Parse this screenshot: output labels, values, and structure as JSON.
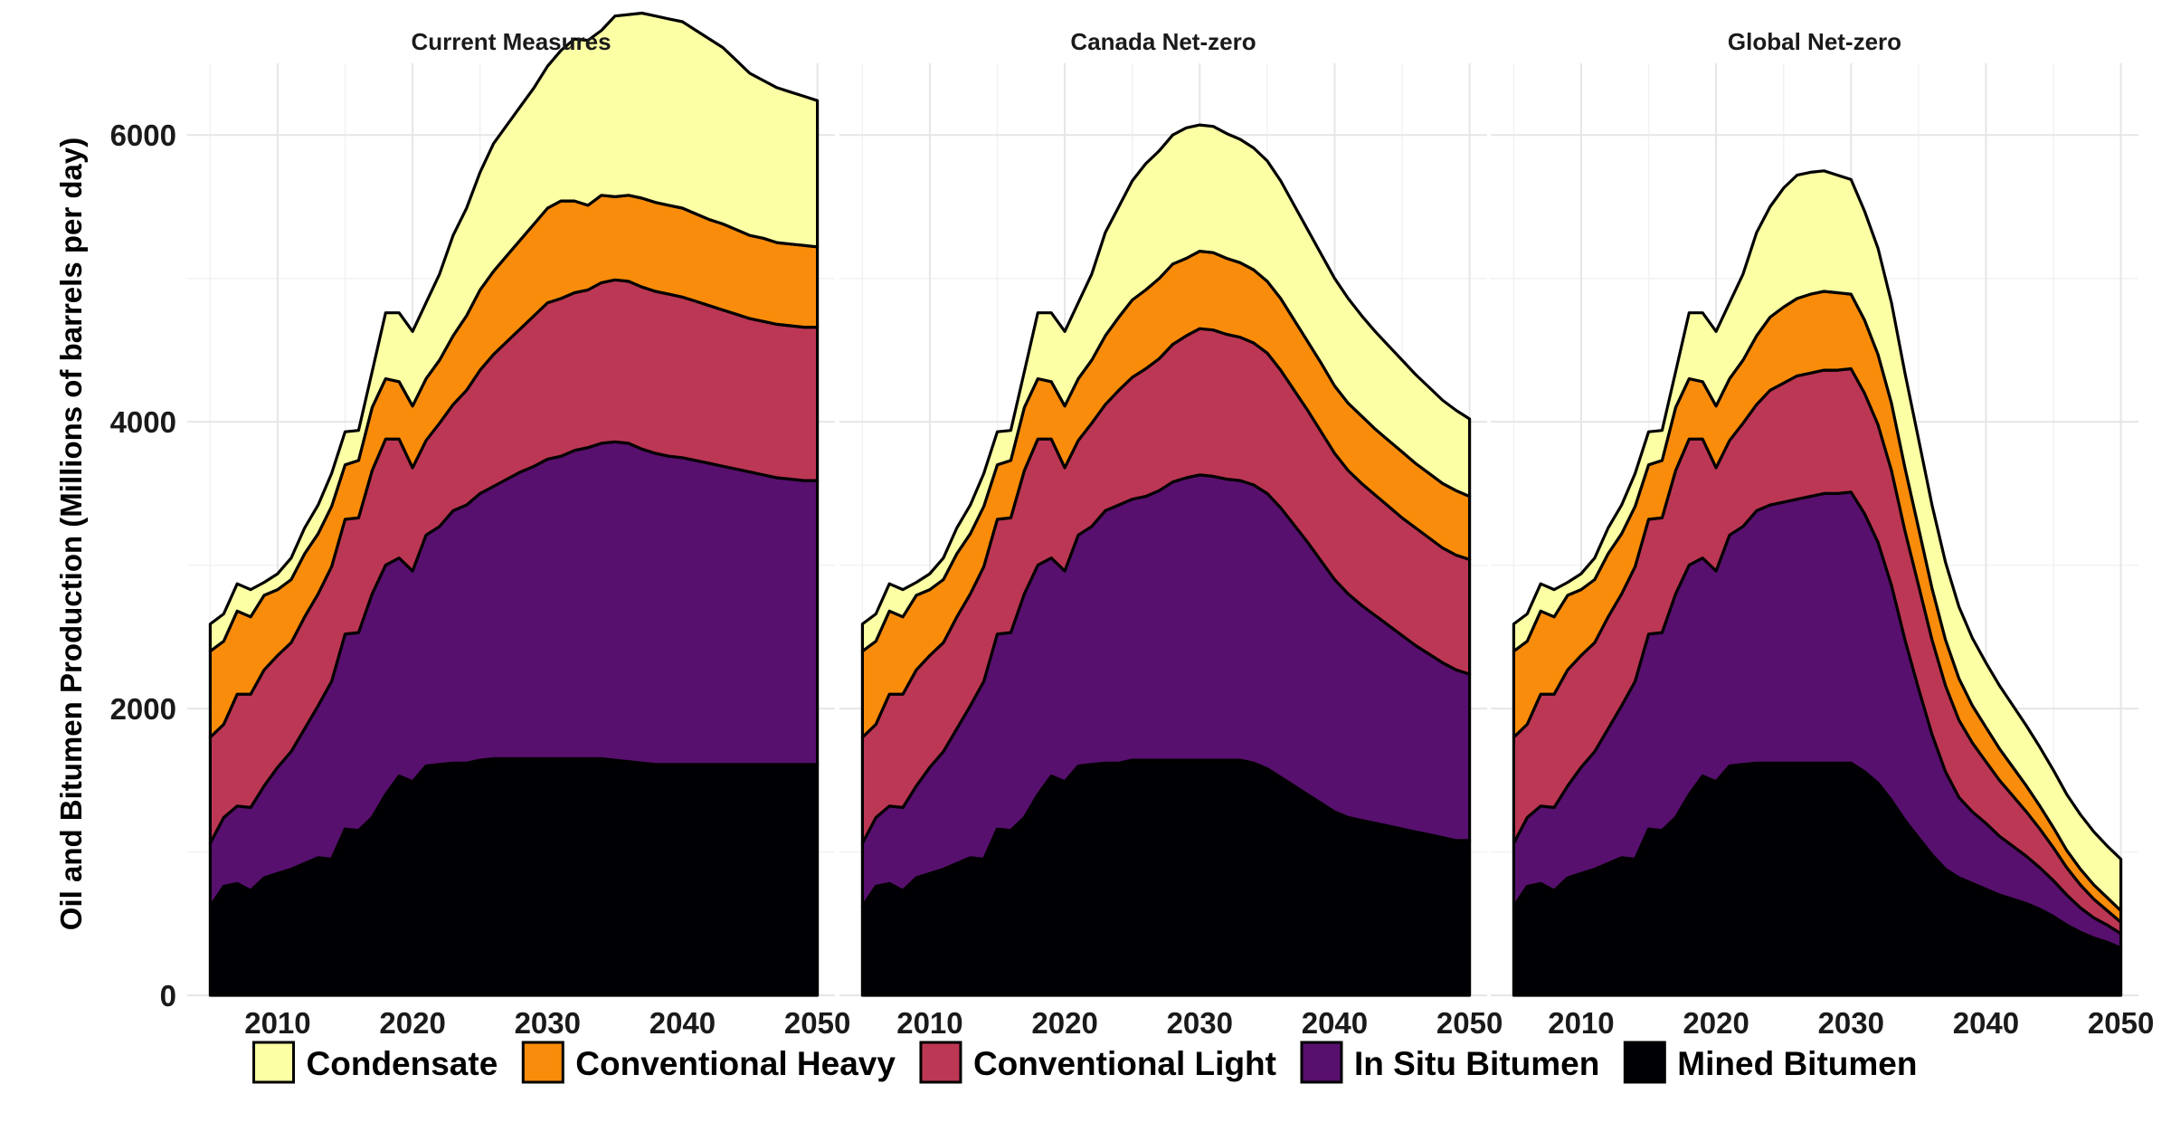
{
  "chart_data": {
    "type": "area",
    "stacked": true,
    "ylabel": "Oil and Bitumen Production (Millions of barrels per day)",
    "xlabel": "",
    "xlim": [
      2005,
      2050
    ],
    "ylim": [
      0,
      6500
    ],
    "x_ticks": [
      2010,
      2020,
      2030,
      2040,
      2050
    ],
    "y_ticks": [
      0,
      2000,
      4000,
      6000
    ],
    "grid": true,
    "legend_position": "bottom",
    "years": [
      2005,
      2006,
      2007,
      2008,
      2009,
      2010,
      2011,
      2012,
      2013,
      2014,
      2015,
      2016,
      2017,
      2018,
      2019,
      2020,
      2021,
      2022,
      2023,
      2024,
      2025,
      2026,
      2027,
      2028,
      2029,
      2030,
      2031,
      2032,
      2033,
      2034,
      2035,
      2036,
      2037,
      2038,
      2039,
      2040,
      2041,
      2042,
      2043,
      2044,
      2045,
      2046,
      2047,
      2048,
      2049,
      2050
    ],
    "series_order": [
      "Condensate",
      "Conventional Heavy",
      "Conventional Light",
      "In Situ Bitumen",
      "Mined Bitumen"
    ],
    "colors": {
      "Condensate": "#FCFFA4",
      "Conventional Heavy": "#F98C0A",
      "Conventional Light": "#BC3754",
      "In Situ Bitumen": "#57106E",
      "Mined Bitumen": "#000004"
    },
    "legend": [
      {
        "label": "Condensate",
        "color": "#FCFFA4"
      },
      {
        "label": "Conventional Heavy",
        "color": "#F98C0A"
      },
      {
        "label": "Conventional Light",
        "color": "#BC3754"
      },
      {
        "label": "In Situ Bitumen",
        "color": "#57106E"
      },
      {
        "label": "Mined Bitumen",
        "color": "#000004"
      }
    ],
    "panels": [
      {
        "title": "Current Measures",
        "series": [
          {
            "name": "Mined Bitumen",
            "values": [
              620,
              760,
              780,
              730,
              820,
              850,
              880,
              920,
              960,
              950,
              1160,
              1150,
              1240,
              1400,
              1530,
              1490,
              1600,
              1610,
              1620,
              1620,
              1640,
              1650,
              1650,
              1650,
              1650,
              1650,
              1650,
              1650,
              1650,
              1650,
              1640,
              1630,
              1620,
              1610,
              1610,
              1610,
              1610,
              1610,
              1610,
              1610,
              1610,
              1610,
              1610,
              1610,
              1610,
              1610
            ]
          },
          {
            "name": "In Situ Bitumen",
            "values": [
              440,
              480,
              540,
              580,
              640,
              740,
              820,
              940,
              1060,
              1240,
              1360,
              1380,
              1560,
              1600,
              1520,
              1470,
              1610,
              1660,
              1760,
              1800,
              1860,
              1900,
              1950,
              2000,
              2040,
              2090,
              2110,
              2150,
              2170,
              2200,
              2220,
              2220,
              2190,
              2170,
              2150,
              2140,
              2120,
              2100,
              2080,
              2060,
              2040,
              2020,
              2000,
              1990,
              1980,
              1980
            ]
          },
          {
            "name": "Conventional Light",
            "values": [
              740,
              650,
              780,
              790,
              810,
              780,
              760,
              780,
              780,
              800,
              800,
              800,
              860,
              880,
              830,
              720,
              660,
              720,
              740,
              800,
              860,
              920,
              960,
              1000,
              1050,
              1090,
              1100,
              1100,
              1100,
              1120,
              1130,
              1130,
              1130,
              1130,
              1130,
              1120,
              1110,
              1100,
              1090,
              1080,
              1070,
              1070,
              1070,
              1070,
              1070,
              1070
            ]
          },
          {
            "name": "Conventional Heavy",
            "values": [
              600,
              580,
              580,
              540,
              520,
              460,
              440,
              440,
              420,
              420,
              380,
              400,
              440,
              420,
              400,
              430,
              430,
              440,
              480,
              520,
              560,
              580,
              600,
              620,
              640,
              660,
              680,
              640,
              590,
              610,
              580,
              600,
              620,
              620,
              620,
              620,
              610,
              600,
              600,
              590,
              580,
              580,
              570,
              570,
              570,
              560
            ]
          },
          {
            "name": "Condensate",
            "values": [
              190,
              190,
              190,
              190,
              90,
              110,
              150,
              180,
              200,
              230,
              230,
              210,
              250,
              460,
              480,
              520,
              530,
              600,
              700,
              750,
              820,
              890,
              910,
              930,
              950,
              990,
              1050,
              1130,
              1150,
              1150,
              1260,
              1260,
              1290,
              1300,
              1300,
              1300,
              1280,
              1260,
              1230,
              1180,
              1130,
              1100,
              1080,
              1060,
              1040,
              1020
            ]
          }
        ]
      },
      {
        "title": "Canada Net-zero",
        "series": [
          {
            "name": "Mined Bitumen",
            "values": [
              620,
              760,
              780,
              730,
              820,
              850,
              880,
              920,
              960,
              950,
              1160,
              1150,
              1240,
              1400,
              1530,
              1490,
              1600,
              1610,
              1620,
              1620,
              1640,
              1640,
              1640,
              1640,
              1640,
              1640,
              1640,
              1640,
              1640,
              1620,
              1580,
              1520,
              1460,
              1400,
              1340,
              1280,
              1240,
              1220,
              1200,
              1180,
              1160,
              1140,
              1120,
              1100,
              1080,
              1080
            ]
          },
          {
            "name": "In Situ Bitumen",
            "values": [
              440,
              480,
              540,
              580,
              640,
              740,
              820,
              940,
              1060,
              1240,
              1360,
              1380,
              1560,
              1600,
              1520,
              1470,
              1610,
              1660,
              1760,
              1800,
              1820,
              1840,
              1880,
              1940,
              1970,
              1990,
              1980,
              1960,
              1950,
              1940,
              1920,
              1880,
              1820,
              1760,
              1690,
              1620,
              1560,
              1500,
              1450,
              1400,
              1350,
              1300,
              1260,
              1220,
              1190,
              1160
            ]
          },
          {
            "name": "Conventional Light",
            "values": [
              740,
              650,
              780,
              790,
              810,
              780,
              760,
              780,
              780,
              800,
              800,
              800,
              860,
              880,
              830,
              720,
              660,
              720,
              740,
              800,
              850,
              890,
              920,
              960,
              990,
              1020,
              1020,
              1010,
              1000,
              990,
              980,
              960,
              940,
              920,
              900,
              880,
              860,
              850,
              840,
              830,
              820,
              820,
              810,
              800,
              800,
              800
            ]
          },
          {
            "name": "Conventional Heavy",
            "values": [
              600,
              580,
              580,
              540,
              520,
              460,
              440,
              440,
              420,
              420,
              380,
              400,
              440,
              420,
              400,
              430,
              430,
              440,
              480,
              510,
              540,
              550,
              560,
              560,
              540,
              540,
              540,
              530,
              520,
              510,
              500,
              500,
              490,
              480,
              480,
              470,
              470,
              470,
              460,
              460,
              460,
              450,
              450,
              450,
              450,
              440
            ]
          },
          {
            "name": "Condensate",
            "values": [
              190,
              190,
              190,
              190,
              90,
              110,
              150,
              180,
              200,
              230,
              230,
              210,
              250,
              460,
              480,
              520,
              530,
              600,
              720,
              770,
              830,
              880,
              890,
              900,
              910,
              880,
              880,
              870,
              860,
              850,
              840,
              820,
              800,
              780,
              760,
              750,
              730,
              700,
              680,
              660,
              640,
              620,
              600,
              580,
              560,
              540
            ]
          }
        ]
      },
      {
        "title": "Global Net-zero",
        "series": [
          {
            "name": "Mined Bitumen",
            "values": [
              620,
              760,
              780,
              730,
              820,
              850,
              880,
              920,
              960,
              950,
              1160,
              1150,
              1240,
              1400,
              1530,
              1490,
              1600,
              1610,
              1620,
              1620,
              1620,
              1620,
              1620,
              1620,
              1620,
              1620,
              1560,
              1480,
              1360,
              1220,
              1100,
              980,
              880,
              820,
              780,
              740,
              700,
              670,
              640,
              600,
              550,
              490,
              440,
              400,
              370,
              330
            ]
          },
          {
            "name": "In Situ Bitumen",
            "values": [
              440,
              480,
              540,
              580,
              640,
              740,
              820,
              940,
              1060,
              1240,
              1360,
              1380,
              1560,
              1600,
              1520,
              1470,
              1610,
              1660,
              1760,
              1800,
              1820,
              1840,
              1860,
              1880,
              1880,
              1890,
              1800,
              1680,
              1500,
              1260,
              1040,
              840,
              680,
              560,
              500,
              460,
              410,
              370,
              330,
              290,
              250,
              210,
              170,
              140,
              120,
              100
            ]
          },
          {
            "name": "Conventional Light",
            "values": [
              740,
              650,
              780,
              790,
              810,
              780,
              760,
              780,
              780,
              800,
              800,
              800,
              860,
              880,
              830,
              720,
              660,
              720,
              740,
              800,
              830,
              860,
              860,
              860,
              860,
              860,
              840,
              820,
              800,
              760,
              720,
              660,
              600,
              540,
              480,
              430,
              390,
              350,
              310,
              270,
              230,
              190,
              160,
              130,
              100,
              80
            ]
          },
          {
            "name": "Conventional Heavy",
            "values": [
              600,
              580,
              580,
              540,
              520,
              460,
              440,
              440,
              420,
              420,
              380,
              400,
              440,
              420,
              400,
              430,
              430,
              440,
              480,
              510,
              530,
              540,
              550,
              550,
              540,
              520,
              510,
              490,
              470,
              440,
              400,
              360,
              320,
              290,
              260,
              240,
              220,
              200,
              180,
              160,
              140,
              120,
              110,
              100,
              90,
              80
            ]
          },
          {
            "name": "Condensate",
            "values": [
              190,
              190,
              190,
              190,
              90,
              110,
              150,
              180,
              200,
              230,
              230,
              210,
              250,
              460,
              480,
              520,
              530,
              600,
              720,
              770,
              830,
              860,
              850,
              840,
              820,
              800,
              760,
              740,
              700,
              660,
              620,
              580,
              540,
              500,
              470,
              450,
              440,
              430,
              420,
              410,
              400,
              390,
              380,
              370,
              360,
              360
            ]
          }
        ]
      }
    ]
  }
}
